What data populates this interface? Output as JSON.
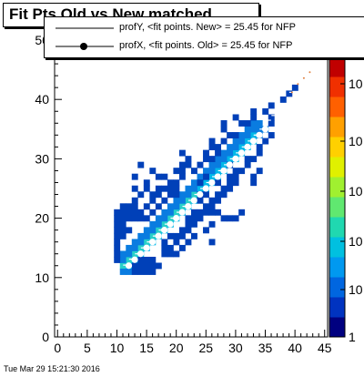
{
  "timestamp": "Tue Mar 29 15:21:30 2016",
  "chart_data": {
    "type": "heatmap",
    "title": "Fit Pts Old vs New matched",
    "xlabel": "",
    "ylabel": "",
    "xlim": [
      -0.5,
      45.5
    ],
    "ylim": [
      0,
      50
    ],
    "xticks": [
      0,
      5,
      10,
      15,
      20,
      25,
      30,
      35,
      40,
      45
    ],
    "yticks": [
      0,
      10,
      20,
      30,
      40,
      50
    ],
    "colorbar_labels": [
      "1",
      "10",
      "10",
      "10",
      "10",
      "10"
    ],
    "log_z": true,
    "legend": [
      "profY, <fit points. New> =   25.45 for NFP",
      "profX, <fit points. Old> =   25.45 for NFP"
    ],
    "cells": [
      [
        11,
        12,
        4
      ],
      [
        12,
        12,
        3
      ],
      [
        12,
        13,
        4
      ],
      [
        13,
        13,
        3
      ],
      [
        13,
        14,
        4
      ],
      [
        14,
        14,
        3
      ],
      [
        14,
        15,
        4
      ],
      [
        15,
        15,
        3
      ],
      [
        15,
        16,
        4
      ],
      [
        16,
        16,
        3
      ],
      [
        16,
        17,
        4
      ],
      [
        17,
        17,
        3
      ],
      [
        17,
        18,
        4
      ],
      [
        18,
        18,
        3
      ],
      [
        18,
        19,
        4
      ],
      [
        19,
        19,
        3
      ],
      [
        19,
        20,
        4
      ],
      [
        20,
        20,
        3
      ],
      [
        20,
        21,
        4
      ],
      [
        21,
        21,
        3
      ],
      [
        21,
        22,
        4
      ],
      [
        22,
        22,
        3
      ],
      [
        22,
        23,
        4
      ],
      [
        23,
        23,
        3
      ],
      [
        23,
        24,
        4
      ],
      [
        24,
        24,
        3
      ],
      [
        24,
        25,
        3
      ],
      [
        25,
        25,
        3
      ],
      [
        25,
        26,
        3
      ],
      [
        26,
        26,
        3
      ],
      [
        26,
        27,
        3
      ],
      [
        27,
        27,
        3
      ],
      [
        27,
        28,
        3
      ],
      [
        28,
        28,
        3
      ],
      [
        28,
        29,
        3
      ],
      [
        29,
        29,
        3
      ],
      [
        29,
        30,
        3
      ],
      [
        30,
        30,
        3
      ],
      [
        30,
        31,
        3
      ],
      [
        31,
        31,
        3
      ],
      [
        31,
        32,
        3
      ],
      [
        32,
        32,
        3
      ],
      [
        32,
        33,
        3
      ],
      [
        33,
        33,
        3
      ],
      [
        33,
        34,
        3
      ],
      [
        34,
        34,
        2
      ],
      [
        34,
        35,
        2
      ],
      [
        35,
        35,
        2
      ],
      [
        11,
        11,
        2
      ],
      [
        12,
        11,
        2
      ],
      [
        11,
        13,
        2
      ],
      [
        11,
        14,
        2
      ],
      [
        12,
        14,
        2
      ],
      [
        13,
        15,
        2
      ],
      [
        12,
        15,
        2
      ],
      [
        14,
        16,
        2
      ],
      [
        13,
        16,
        2
      ],
      [
        15,
        17,
        2
      ],
      [
        14,
        17,
        2
      ],
      [
        16,
        18,
        2
      ],
      [
        15,
        18,
        2
      ],
      [
        17,
        19,
        2
      ],
      [
        16,
        19,
        2
      ],
      [
        18,
        20,
        2
      ],
      [
        17,
        20,
        2
      ],
      [
        19,
        21,
        2
      ],
      [
        18,
        21,
        2
      ],
      [
        20,
        22,
        2
      ],
      [
        19,
        22,
        2
      ],
      [
        21,
        23,
        2
      ],
      [
        20,
        23,
        2
      ],
      [
        22,
        24,
        2
      ],
      [
        21,
        24,
        2
      ],
      [
        23,
        25,
        2
      ],
      [
        22,
        25,
        2
      ],
      [
        24,
        26,
        2
      ],
      [
        23,
        26,
        2
      ],
      [
        25,
        27,
        2
      ],
      [
        24,
        27,
        2
      ],
      [
        26,
        28,
        2
      ],
      [
        25,
        28,
        2
      ],
      [
        27,
        29,
        2
      ],
      [
        26,
        29,
        2
      ],
      [
        28,
        30,
        2
      ],
      [
        27,
        30,
        2
      ],
      [
        29,
        31,
        2
      ],
      [
        28,
        31,
        2
      ],
      [
        30,
        32,
        2
      ],
      [
        29,
        32,
        2
      ],
      [
        31,
        33,
        2
      ],
      [
        30,
        33,
        2
      ],
      [
        32,
        34,
        2
      ],
      [
        31,
        34,
        2
      ],
      [
        33,
        35,
        2
      ],
      [
        32,
        35,
        2
      ],
      [
        34,
        36,
        2
      ],
      [
        33,
        36,
        2
      ],
      [
        10,
        13,
        1
      ],
      [
        10,
        14,
        1
      ],
      [
        10,
        15,
        1
      ],
      [
        10,
        16,
        1
      ],
      [
        10,
        17,
        1
      ],
      [
        10,
        18,
        1
      ],
      [
        10,
        19,
        1
      ],
      [
        11,
        17,
        1
      ],
      [
        11,
        18,
        1
      ],
      [
        11,
        19,
        1
      ],
      [
        11,
        20,
        1
      ],
      [
        12,
        18,
        1
      ],
      [
        12,
        20,
        1
      ],
      [
        12,
        21,
        1
      ],
      [
        13,
        11,
        1
      ],
      [
        14,
        11,
        1
      ],
      [
        15,
        11,
        1
      ],
      [
        16,
        11,
        1
      ],
      [
        13,
        12,
        1
      ],
      [
        14,
        12,
        1
      ],
      [
        15,
        12,
        1
      ],
      [
        16,
        12,
        1
      ],
      [
        17,
        12,
        1
      ],
      [
        14,
        13,
        1
      ],
      [
        15,
        13,
        1
      ],
      [
        16,
        13,
        1
      ],
      [
        13,
        20,
        1
      ],
      [
        13,
        21,
        1
      ],
      [
        13,
        22,
        1
      ],
      [
        13,
        23,
        1
      ],
      [
        14,
        20,
        1
      ],
      [
        14,
        21,
        1
      ],
      [
        14,
        24,
        1
      ],
      [
        15,
        20,
        1
      ],
      [
        15,
        22,
        1
      ],
      [
        16,
        21,
        1
      ],
      [
        16,
        23,
        1
      ],
      [
        17,
        22,
        1
      ],
      [
        17,
        24,
        1
      ],
      [
        18,
        23,
        1
      ],
      [
        18,
        25,
        1
      ],
      [
        15,
        26,
        1
      ],
      [
        13,
        27,
        1
      ],
      [
        16,
        28,
        1
      ],
      [
        17,
        27,
        1
      ],
      [
        18,
        27,
        1
      ],
      [
        19,
        26,
        1
      ],
      [
        19,
        25,
        1
      ],
      [
        20,
        25,
        1
      ],
      [
        20,
        26,
        1
      ],
      [
        21,
        28,
        1
      ],
      [
        22,
        29,
        1
      ],
      [
        23,
        28,
        1
      ],
      [
        24,
        29,
        1
      ],
      [
        25,
        30,
        1
      ],
      [
        25,
        31,
        1
      ],
      [
        26,
        30,
        1
      ],
      [
        26,
        32,
        1
      ],
      [
        27,
        32,
        1
      ],
      [
        28,
        33,
        1
      ],
      [
        29,
        34,
        1
      ],
      [
        30,
        34,
        1
      ],
      [
        31,
        36,
        1
      ],
      [
        32,
        36,
        1
      ],
      [
        33,
        37,
        1
      ],
      [
        35,
        38,
        1
      ],
      [
        36,
        37,
        1
      ],
      [
        38,
        40,
        1
      ],
      [
        36,
        39,
        1
      ],
      [
        18,
        15,
        1
      ],
      [
        19,
        15,
        1
      ],
      [
        18,
        16,
        1
      ],
      [
        19,
        17,
        1
      ],
      [
        20,
        16,
        1
      ],
      [
        20,
        17,
        1
      ],
      [
        21,
        17,
        1
      ],
      [
        21,
        18,
        1
      ],
      [
        22,
        18,
        1
      ],
      [
        22,
        19,
        1
      ],
      [
        23,
        19,
        1
      ],
      [
        23,
        20,
        1
      ],
      [
        24,
        20,
        1
      ],
      [
        24,
        21,
        1
      ],
      [
        25,
        22,
        1
      ],
      [
        25,
        21,
        1
      ],
      [
        26,
        22,
        1
      ],
      [
        26,
        23,
        1
      ],
      [
        27,
        24,
        1
      ],
      [
        28,
        24,
        1
      ],
      [
        28,
        25,
        1
      ],
      [
        29,
        26,
        1
      ],
      [
        29,
        27,
        1
      ],
      [
        30,
        27,
        1
      ],
      [
        30,
        28,
        1
      ],
      [
        31,
        28,
        1
      ],
      [
        32,
        29,
        1
      ],
      [
        32,
        30,
        1
      ],
      [
        33,
        30,
        1
      ],
      [
        34,
        31,
        1
      ],
      [
        34,
        32,
        1
      ],
      [
        35,
        33,
        1
      ],
      [
        36,
        34,
        1
      ],
      [
        18,
        14,
        1
      ],
      [
        19,
        14,
        1
      ],
      [
        20,
        14,
        1
      ],
      [
        21,
        15,
        1
      ],
      [
        22,
        16,
        1
      ],
      [
        23,
        17,
        1
      ],
      [
        22,
        20,
        1
      ],
      [
        23,
        21,
        1
      ],
      [
        24,
        23,
        1
      ],
      [
        26,
        21,
        1
      ],
      [
        27,
        21,
        1
      ],
      [
        28,
        20,
        1
      ],
      [
        29,
        20,
        1
      ],
      [
        30,
        20,
        1
      ],
      [
        31,
        21,
        1
      ],
      [
        33,
        26,
        1
      ],
      [
        33,
        27,
        1
      ],
      [
        30,
        26,
        1
      ],
      [
        29,
        25,
        1
      ],
      [
        27,
        23,
        1
      ],
      [
        25,
        24,
        1
      ],
      [
        24,
        24,
        1
      ],
      [
        20,
        28,
        1
      ],
      [
        21,
        29,
        1
      ],
      [
        22,
        30,
        1
      ],
      [
        20,
        24,
        1
      ],
      [
        19,
        24,
        1
      ],
      [
        25,
        27,
        1
      ],
      [
        27,
        31,
        1
      ],
      [
        28,
        35,
        1
      ],
      [
        28,
        36,
        1
      ],
      [
        21,
        31,
        1
      ],
      [
        26,
        33,
        1
      ],
      [
        30,
        37,
        1
      ],
      [
        33,
        38,
        1
      ],
      [
        39,
        41,
        1
      ],
      [
        40,
        42,
        1
      ],
      [
        26,
        16,
        1
      ],
      [
        25,
        18,
        1
      ],
      [
        26,
        19,
        1
      ],
      [
        21,
        27,
        1
      ],
      [
        14,
        29,
        1
      ],
      [
        15,
        25,
        1
      ],
      [
        16,
        24,
        1
      ],
      [
        17,
        25,
        1
      ],
      [
        13,
        25,
        1
      ],
      [
        12,
        22,
        1
      ],
      [
        11,
        21,
        1
      ],
      [
        11,
        22,
        1
      ],
      [
        10,
        20,
        1
      ],
      [
        10,
        21,
        1
      ],
      [
        36,
        36,
        1
      ],
      [
        34,
        28,
        1
      ],
      [
        29,
        29,
        1
      ],
      [
        27,
        26,
        1
      ],
      [
        24,
        26,
        1
      ]
    ],
    "profile_y": [
      [
        11.5,
        12.1
      ],
      [
        12.5,
        13.1
      ],
      [
        13.5,
        14.0
      ],
      [
        14.5,
        15.0
      ],
      [
        15.5,
        16.0
      ],
      [
        16.5,
        17.0
      ],
      [
        17.5,
        18.0
      ],
      [
        18.5,
        19.0
      ],
      [
        19.5,
        20.0
      ],
      [
        20.5,
        21.0
      ],
      [
        21.5,
        22.0
      ],
      [
        22.5,
        23.0
      ],
      [
        23.5,
        24.0
      ],
      [
        24.5,
        25.0
      ],
      [
        25.5,
        26.0
      ],
      [
        26.5,
        27.0
      ],
      [
        27.5,
        28.0
      ],
      [
        28.5,
        29.0
      ],
      [
        29.5,
        30.0
      ],
      [
        30.5,
        31.0
      ],
      [
        31.5,
        32.0
      ],
      [
        32.5,
        33.0
      ],
      [
        33.5,
        34.0
      ],
      [
        34.5,
        35.0
      ],
      [
        35.5,
        36.5
      ],
      [
        36.5,
        37.3
      ],
      [
        37.5,
        38.3
      ],
      [
        38.5,
        39.3
      ],
      [
        39.5,
        41.2
      ],
      [
        40.5,
        42.6
      ],
      [
        41.5,
        43.6
      ],
      [
        42.5,
        44.6
      ]
    ],
    "profile_x": [
      [
        12.0,
        12.0
      ],
      [
        13.0,
        13.0
      ],
      [
        14.0,
        14.0
      ],
      [
        15.0,
        15.0
      ],
      [
        16.0,
        16.0
      ],
      [
        17.0,
        17.0
      ],
      [
        18.0,
        18.0
      ],
      [
        19.0,
        19.0
      ],
      [
        20.0,
        20.0
      ],
      [
        21.0,
        21.0
      ],
      [
        22.0,
        22.0
      ],
      [
        23.0,
        23.0
      ],
      [
        24.0,
        24.0
      ],
      [
        25.0,
        25.0
      ],
      [
        26.0,
        26.0
      ],
      [
        27.0,
        27.0
      ],
      [
        28.0,
        28.0
      ],
      [
        29.0,
        29.0
      ],
      [
        30.0,
        30.0
      ],
      [
        31.0,
        31.0
      ],
      [
        32.0,
        32.0
      ],
      [
        33.0,
        33.0
      ],
      [
        34.0,
        34.0
      ],
      [
        35.0,
        35.0
      ]
    ]
  }
}
